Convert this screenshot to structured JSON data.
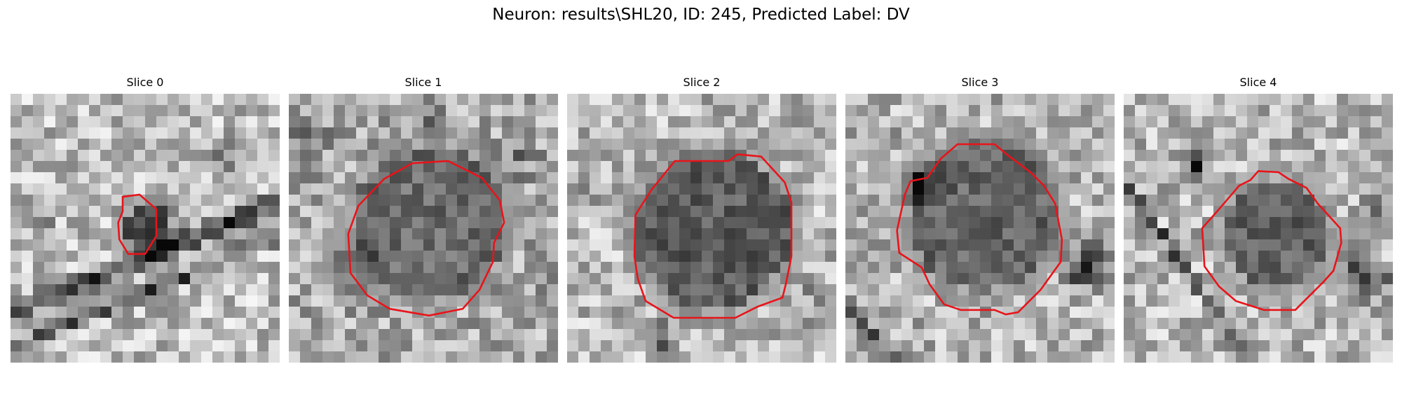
{
  "figure": {
    "title": "Neuron: results\\SHL20, ID: 245, Predicted Label: DV"
  },
  "slices": [
    {
      "title": "Slice 0"
    },
    {
      "title": "Slice 1"
    },
    {
      "title": "Slice 2"
    },
    {
      "title": "Slice 3"
    },
    {
      "title": "Slice 4"
    }
  ],
  "style": {
    "contour_color": "#e8141a",
    "image_colormap": "gray"
  }
}
